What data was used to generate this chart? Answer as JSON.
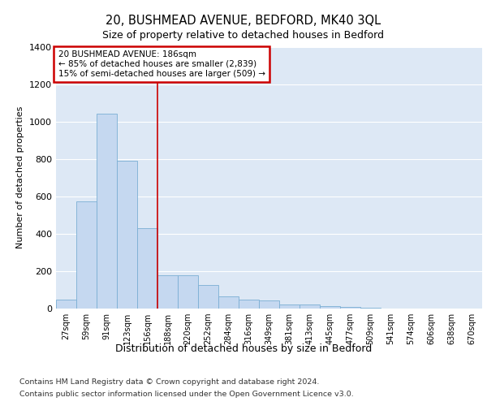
{
  "title": "20, BUSHMEAD AVENUE, BEDFORD, MK40 3QL",
  "subtitle": "Size of property relative to detached houses in Bedford",
  "xlabel": "Distribution of detached houses by size in Bedford",
  "ylabel": "Number of detached properties",
  "bar_values": [
    48,
    575,
    1040,
    790,
    430,
    180,
    180,
    125,
    65,
    47,
    42,
    22,
    22,
    15,
    10,
    5,
    2,
    1,
    0,
    0,
    0
  ],
  "bar_labels": [
    "27sqm",
    "59sqm",
    "91sqm",
    "123sqm",
    "156sqm",
    "188sqm",
    "220sqm",
    "252sqm",
    "284sqm",
    "316sqm",
    "349sqm",
    "381sqm",
    "413sqm",
    "445sqm",
    "477sqm",
    "509sqm",
    "541sqm",
    "574sqm",
    "606sqm",
    "638sqm",
    "670sqm"
  ],
  "bar_color": "#c5d8f0",
  "bar_edge_color": "#7bafd4",
  "bg_color": "#dde8f5",
  "grid_color": "#ffffff",
  "red_line_index": 5,
  "annotation_title": "20 BUSHMEAD AVENUE: 186sqm",
  "annotation_line1": "← 85% of detached houses are smaller (2,839)",
  "annotation_line2": "15% of semi-detached houses are larger (509) →",
  "annotation_box_color": "#ffffff",
  "annotation_box_edge": "#cc0000",
  "red_line_color": "#cc0000",
  "footer_line1": "Contains HM Land Registry data © Crown copyright and database right 2024.",
  "footer_line2": "Contains public sector information licensed under the Open Government Licence v3.0.",
  "ylim": [
    0,
    1400
  ],
  "yticks": [
    0,
    200,
    400,
    600,
    800,
    1000,
    1200,
    1400
  ]
}
